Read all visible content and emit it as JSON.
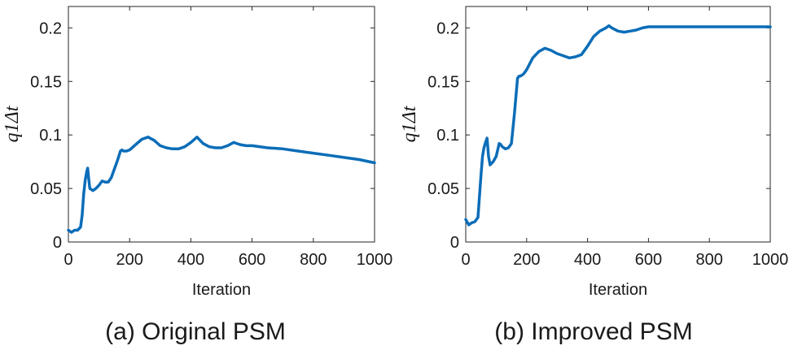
{
  "figure": {
    "captions": [
      "(a) Original PSM",
      "(b) Improved PSM"
    ]
  },
  "colors": {
    "series": "#0b6db8",
    "axes": "#262626"
  },
  "chart_data": [
    {
      "type": "line",
      "title": "",
      "caption": "(a) Original PSM",
      "xlabel": "Iteration",
      "ylabel": "q1Δt",
      "xlim": [
        0,
        1000
      ],
      "ylim": [
        0,
        0.22
      ],
      "xticks": [
        0,
        200,
        400,
        600,
        800,
        1000
      ],
      "yticks": [
        0,
        0.05,
        0.1,
        0.15,
        0.2
      ],
      "xtick_labels": [
        "0",
        "200",
        "400",
        "600",
        "800",
        "1000"
      ],
      "ytick_labels": [
        "0",
        "0.05",
        "0.1",
        "0.15",
        "0.2"
      ],
      "grid": false,
      "series": [
        {
          "color": "#0b6db8",
          "x": [
            0,
            10,
            20,
            30,
            40,
            45,
            50,
            55,
            60,
            63,
            66,
            70,
            80,
            90,
            100,
            110,
            120,
            130,
            140,
            150,
            160,
            170,
            175,
            180,
            190,
            200,
            220,
            240,
            260,
            280,
            300,
            320,
            340,
            360,
            380,
            400,
            420,
            440,
            460,
            480,
            500,
            520,
            540,
            560,
            580,
            600,
            650,
            700,
            750,
            800,
            850,
            900,
            950,
            1000
          ],
          "y": [
            0.011,
            0.009,
            0.011,
            0.011,
            0.014,
            0.025,
            0.045,
            0.058,
            0.066,
            0.069,
            0.06,
            0.05,
            0.048,
            0.05,
            0.053,
            0.057,
            0.056,
            0.056,
            0.06,
            0.068,
            0.076,
            0.085,
            0.086,
            0.085,
            0.085,
            0.086,
            0.091,
            0.096,
            0.098,
            0.095,
            0.09,
            0.088,
            0.087,
            0.087,
            0.089,
            0.093,
            0.098,
            0.092,
            0.089,
            0.088,
            0.088,
            0.09,
            0.093,
            0.091,
            0.09,
            0.09,
            0.088,
            0.087,
            0.085,
            0.083,
            0.081,
            0.079,
            0.077,
            0.074
          ]
        }
      ]
    },
    {
      "type": "line",
      "title": "",
      "caption": "(b) Improved PSM",
      "xlabel": "Iteration",
      "ylabel": "q1Δt",
      "xlim": [
        0,
        1000
      ],
      "ylim": [
        0,
        0.22
      ],
      "xticks": [
        0,
        200,
        400,
        600,
        800,
        1000
      ],
      "yticks": [
        0,
        0.05,
        0.1,
        0.15,
        0.2
      ],
      "xtick_labels": [
        "0",
        "200",
        "400",
        "600",
        "800",
        "1000"
      ],
      "ytick_labels": [
        "0",
        "0.05",
        "0.1",
        "0.15",
        "0.2"
      ],
      "grid": false,
      "series": [
        {
          "color": "#0b6db8",
          "x": [
            0,
            10,
            20,
            30,
            40,
            45,
            50,
            55,
            60,
            65,
            70,
            75,
            80,
            90,
            100,
            110,
            115,
            120,
            130,
            140,
            150,
            160,
            170,
            175,
            180,
            190,
            200,
            220,
            240,
            260,
            280,
            300,
            320,
            340,
            360,
            380,
            400,
            420,
            440,
            460,
            470,
            480,
            500,
            520,
            540,
            560,
            580,
            600,
            650,
            700,
            750,
            800,
            850,
            900,
            950,
            1000
          ],
          "y": [
            0.021,
            0.016,
            0.018,
            0.019,
            0.023,
            0.042,
            0.062,
            0.08,
            0.088,
            0.093,
            0.097,
            0.08,
            0.072,
            0.075,
            0.08,
            0.092,
            0.091,
            0.089,
            0.087,
            0.088,
            0.092,
            0.12,
            0.153,
            0.155,
            0.155,
            0.157,
            0.161,
            0.172,
            0.178,
            0.181,
            0.179,
            0.176,
            0.174,
            0.172,
            0.173,
            0.175,
            0.183,
            0.192,
            0.197,
            0.2,
            0.202,
            0.2,
            0.197,
            0.196,
            0.197,
            0.198,
            0.2,
            0.201,
            0.201,
            0.201,
            0.201,
            0.201,
            0.201,
            0.201,
            0.201,
            0.201
          ]
        }
      ]
    }
  ]
}
